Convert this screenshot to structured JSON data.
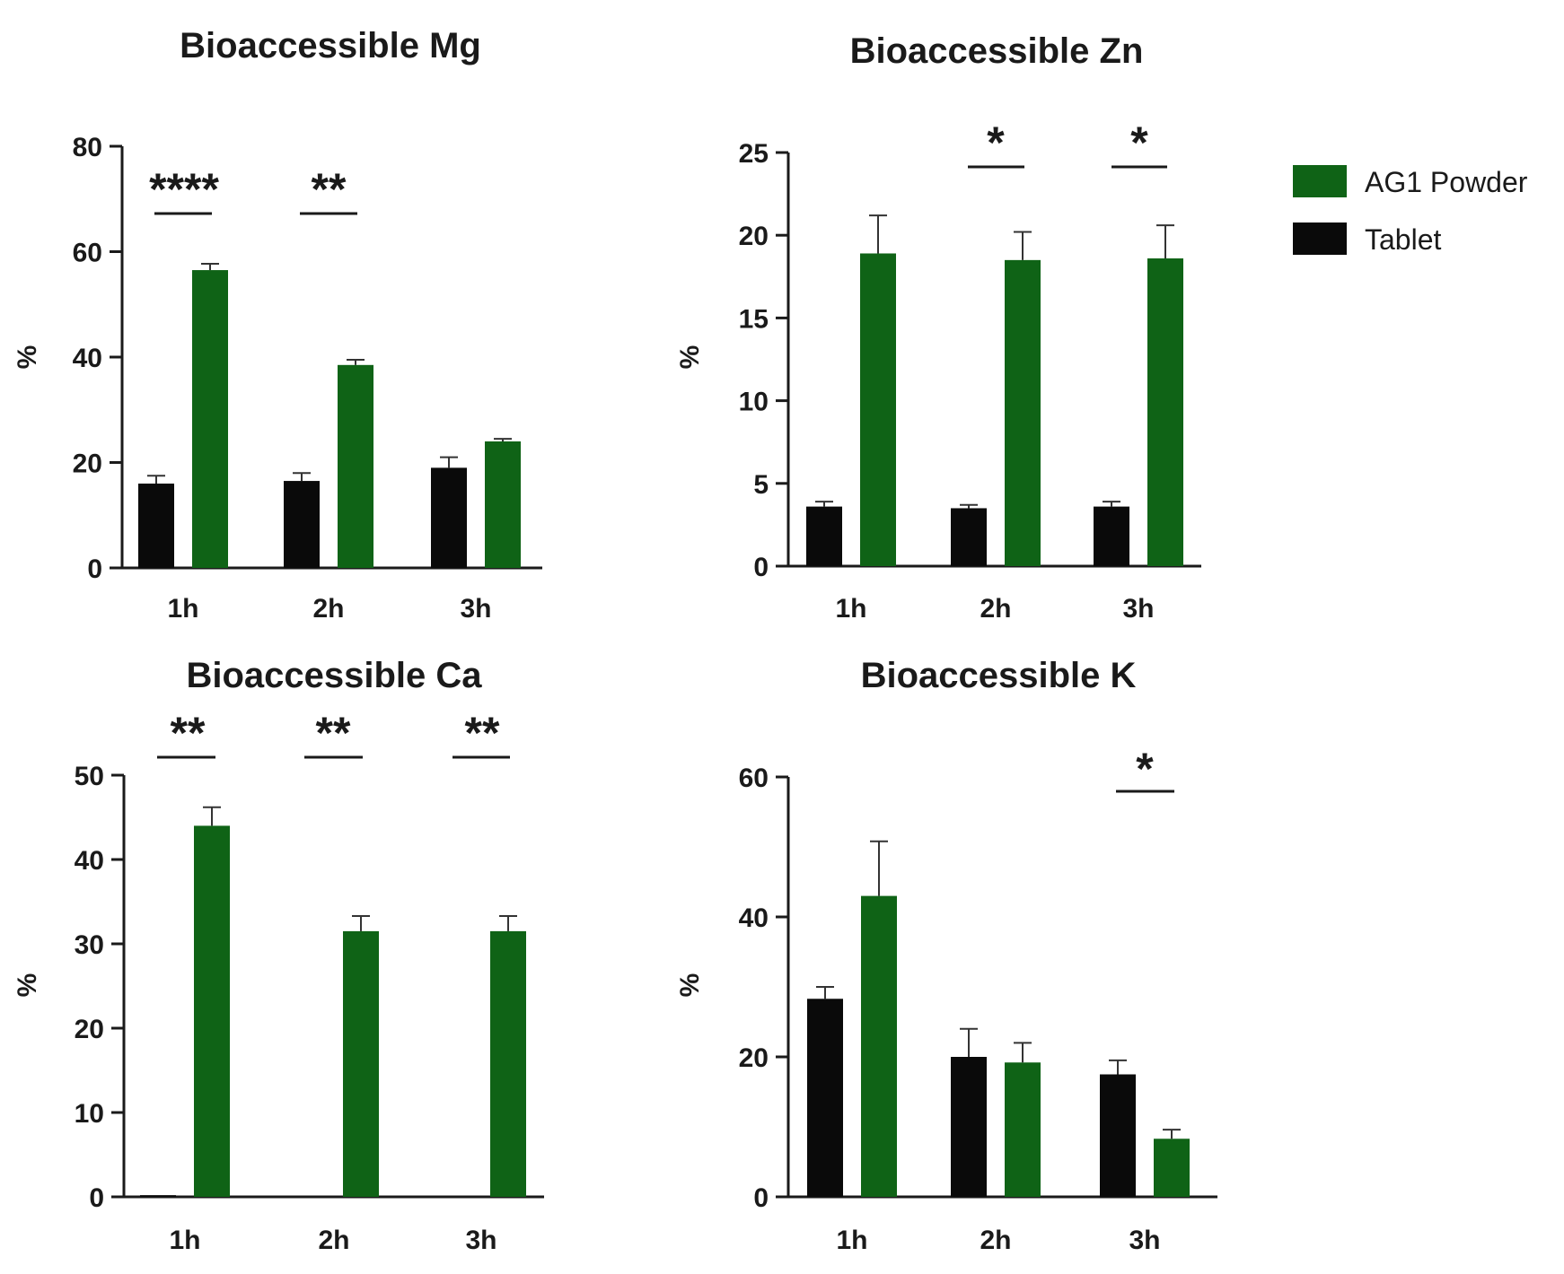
{
  "legend": [
    {
      "name": "AG1 Powder",
      "color": "#0f6316"
    },
    {
      "name": "Tablet",
      "color": "#0a0a0a"
    }
  ],
  "chart_data": [
    {
      "type": "bar",
      "title": "Bioaccessible Mg",
      "ylabel": "%",
      "categories": [
        "1h",
        "2h",
        "3h"
      ],
      "ylim": [
        0,
        80
      ],
      "yticks": [
        0,
        20,
        40,
        60,
        80
      ],
      "series": [
        {
          "name": "Tablet",
          "values": [
            16,
            16.5,
            19
          ],
          "errors": [
            1.5,
            1.5,
            2
          ]
        },
        {
          "name": "AG1 Powder",
          "values": [
            56.5,
            38.5,
            24
          ],
          "errors": [
            1.2,
            1,
            0.5
          ]
        }
      ],
      "significance": [
        "****",
        "**",
        ""
      ]
    },
    {
      "type": "bar",
      "title": "Bioaccessible Zn",
      "ylabel": "%",
      "categories": [
        "1h",
        "2h",
        "3h"
      ],
      "ylim": [
        0,
        25
      ],
      "yticks": [
        0,
        5,
        10,
        15,
        20,
        25
      ],
      "series": [
        {
          "name": "Tablet",
          "values": [
            3.6,
            3.5,
            3.6
          ],
          "errors": [
            0.3,
            0.2,
            0.3
          ]
        },
        {
          "name": "AG1 Powder",
          "values": [
            18.9,
            18.5,
            18.6
          ],
          "errors": [
            2.3,
            1.7,
            2
          ]
        }
      ],
      "significance": [
        "",
        "*",
        "*"
      ]
    },
    {
      "type": "bar",
      "title": "Bioaccessible Ca",
      "ylabel": "%",
      "categories": [
        "1h",
        "2h",
        "3h"
      ],
      "ylim": [
        0,
        50
      ],
      "yticks": [
        0,
        10,
        20,
        30,
        40,
        50
      ],
      "series": [
        {
          "name": "Tablet",
          "values": [
            0.2,
            0,
            0
          ],
          "errors": [
            0,
            0,
            0
          ]
        },
        {
          "name": "AG1 Powder",
          "values": [
            44,
            31.5,
            31.5
          ],
          "errors": [
            2.2,
            1.8,
            1.8
          ]
        }
      ],
      "significance": [
        "**",
        "**",
        "**"
      ]
    },
    {
      "type": "bar",
      "title": "Bioaccessible K",
      "ylabel": "%",
      "categories": [
        "1h",
        "2h",
        "3h"
      ],
      "ylim": [
        0,
        60
      ],
      "yticks": [
        0,
        20,
        40,
        60
      ],
      "series": [
        {
          "name": "Tablet",
          "values": [
            28.3,
            20,
            17.5
          ],
          "errors": [
            1.7,
            4,
            2
          ]
        },
        {
          "name": "AG1 Powder",
          "values": [
            43,
            19.2,
            8.3
          ],
          "errors": [
            7.8,
            2.8,
            1.3
          ]
        }
      ],
      "significance": [
        "",
        "",
        "*"
      ]
    }
  ]
}
